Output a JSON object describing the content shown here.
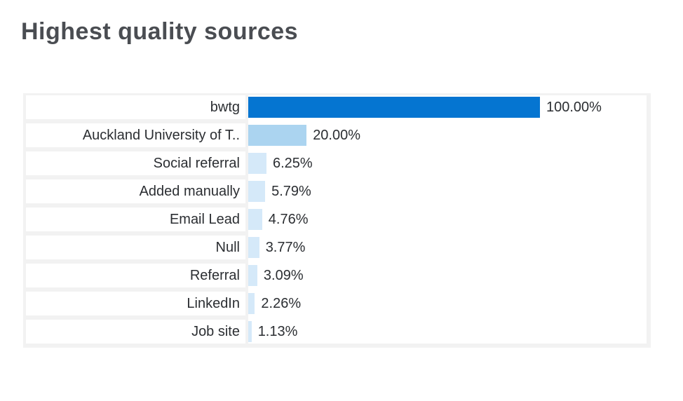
{
  "title": "Highest quality sources",
  "chart_data": {
    "type": "bar",
    "orientation": "horizontal",
    "title": "Highest quality sources",
    "categories": [
      "bwtg",
      "Auckland University of T..",
      "Social referral",
      "Added manually",
      "Email Lead",
      "Null",
      "Referral",
      "LinkedIn",
      "Job site"
    ],
    "values": [
      100.0,
      20.0,
      6.25,
      5.79,
      4.76,
      3.77,
      3.09,
      2.26,
      1.13
    ],
    "value_labels": [
      "100.00%",
      "20.00%",
      "6.25%",
      "5.79%",
      "4.76%",
      "3.77%",
      "3.09%",
      "2.26%",
      "1.13%"
    ],
    "xlim": [
      0,
      100
    ],
    "grid": false,
    "legend": "none",
    "bar_colors": [
      "#0575d1",
      "#abd4f0",
      "#d5e9f9",
      "#d5e9f9",
      "#d5e9f9",
      "#d5e9f9",
      "#d5e9f9",
      "#d5e9f9",
      "#d5e9f9"
    ]
  },
  "colors": {
    "accent_blue": "#0575d1",
    "light_blue": "#abd4f0",
    "pale_blue": "#d5e9f9",
    "panel_gray": "#f2f2f2",
    "text_dark": "#2b2e32",
    "title_gray": "#4a4d52",
    "background": "#ffffff"
  }
}
